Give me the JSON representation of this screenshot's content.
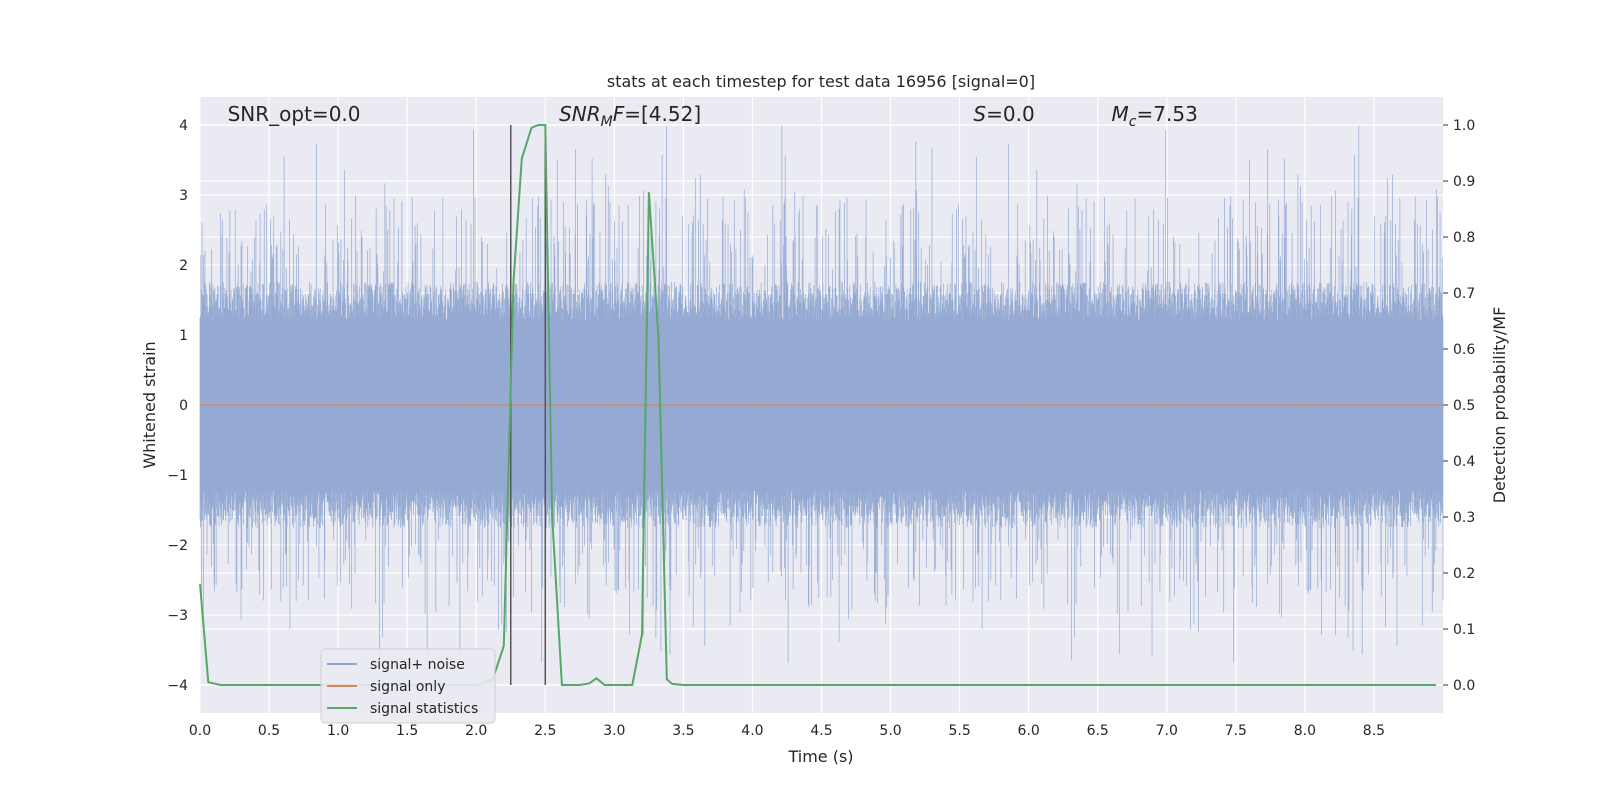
{
  "chart_data": {
    "type": "line",
    "title": "stats at each timestep for test data 16956 [signal=0]",
    "xlabel": "Time (s)",
    "ylabel_left": "Whitened strain",
    "ylabel_right": "Detection probability/MF",
    "xlim": [
      0,
      9.0
    ],
    "ylim_left": [
      -4.4,
      4.4
    ],
    "ylim_right": [
      -0.05,
      1.05
    ],
    "x_ticks": [
      "0.0",
      "0.5",
      "1.0",
      "1.5",
      "2.0",
      "2.5",
      "3.0",
      "3.5",
      "4.0",
      "4.5",
      "5.0",
      "5.5",
      "6.0",
      "6.5",
      "7.0",
      "7.5",
      "8.0",
      "8.5"
    ],
    "y_ticks_left": [
      "4",
      "3",
      "2",
      "1",
      "0",
      "−1",
      "−2",
      "−3",
      "−4"
    ],
    "y_ticks_right": [
      "1.0",
      "0.9",
      "0.8",
      "0.7",
      "0.6",
      "0.5",
      "0.4",
      "0.3",
      "0.2",
      "0.1",
      "0.0"
    ],
    "annotations": [
      {
        "text": "SNR_opt=0.0",
        "x": 0.2,
        "y": 4.1,
        "italic": false
      },
      {
        "text": "SNR_MF=[4.52]",
        "x": 2.6,
        "y": 4.1,
        "italic": true,
        "sub": "M",
        "main": "SNR",
        "rest": "F=[4.52]"
      },
      {
        "text": "S=0.0",
        "x": 5.6,
        "y": 4.1,
        "italic": true,
        "main": "S",
        "rest": "=0.0"
      },
      {
        "text": "M_c=7.53",
        "x": 6.6,
        "y": 4.1,
        "italic": true,
        "main": "M",
        "sub": "c",
        "rest": "=7.53"
      }
    ],
    "vlines": [
      {
        "x": 2.25,
        "ymin": -4.0,
        "ymax": 4.0
      },
      {
        "x": 2.5,
        "ymin": -4.0,
        "ymax": 4.0
      }
    ],
    "series": [
      {
        "name": "signal+ noise",
        "color": "#8fa6d0",
        "kind": "noise",
        "amplitude": 1.6,
        "spike_max": 4.0
      },
      {
        "name": "signal only",
        "color": "#dd8452",
        "values_note": "zero",
        "y": 0.0
      },
      {
        "name": "signal statistics",
        "color": "#55a868",
        "axis": "right",
        "x": [
          0.0,
          0.06,
          0.15,
          0.5,
          1.0,
          1.5,
          2.0,
          2.12,
          2.2,
          2.27,
          2.33,
          2.4,
          2.45,
          2.5,
          2.55,
          2.62,
          2.75,
          2.82,
          2.87,
          2.93,
          3.0,
          3.13,
          3.2,
          3.25,
          3.32,
          3.38,
          3.42,
          3.5,
          4.0,
          5.0,
          6.0,
          7.0,
          8.0,
          8.95
        ],
        "y": [
          0.18,
          0.005,
          0.0,
          0.0,
          0.0,
          0.0,
          0.0,
          0.01,
          0.07,
          0.72,
          0.94,
          0.995,
          1.0,
          1.0,
          0.3,
          0.0,
          0.0,
          0.003,
          0.012,
          0.0,
          0.0,
          0.0,
          0.09,
          0.88,
          0.62,
          0.01,
          0.002,
          0.0,
          0.0,
          0.0,
          0.0,
          0.0,
          0.0,
          0.0
        ]
      }
    ],
    "legend": {
      "placement": "lower-left",
      "entries": [
        "signal+ noise",
        "signal only",
        "signal statistics"
      ]
    },
    "grid": true
  }
}
